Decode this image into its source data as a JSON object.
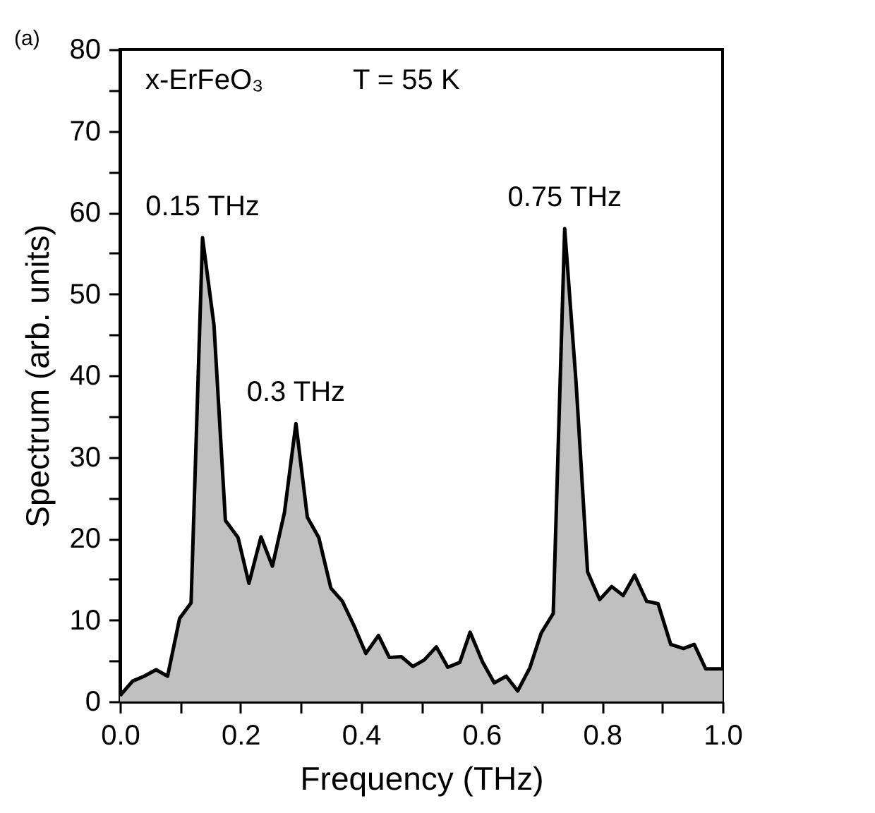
{
  "chart_data": {
    "type": "area",
    "xlabel": "Frequency (THz)",
    "ylabel": "Spectrum (arb. units)",
    "x": [
      0.0,
      0.021,
      0.04,
      0.06,
      0.079,
      0.099,
      0.118,
      0.137,
      0.156,
      0.175,
      0.196,
      0.214,
      0.234,
      0.253,
      0.273,
      0.292,
      0.311,
      0.33,
      0.35,
      0.369,
      0.389,
      0.408,
      0.429,
      0.447,
      0.467,
      0.486,
      0.505,
      0.525,
      0.544,
      0.564,
      0.581,
      0.602,
      0.621,
      0.641,
      0.66,
      0.68,
      0.699,
      0.719,
      0.738,
      0.757,
      0.776,
      0.796,
      0.816,
      0.835,
      0.854,
      0.874,
      0.893,
      0.914,
      0.935,
      0.953,
      0.972,
      0.99,
      1.0
    ],
    "series": [
      {
        "color": "#c0c0c0",
        "values": [
          0.7,
          2.5,
          3.1,
          3.9,
          3.1,
          10.2,
          12.1,
          56.9,
          46.2,
          22.2,
          20.1,
          14.5,
          20.2,
          16.6,
          23.2,
          34.1,
          22.6,
          20.1,
          13.9,
          12.3,
          9.2,
          5.9,
          8.1,
          5.4,
          5.5,
          4.3,
          5.1,
          6.7,
          4.2,
          4.8,
          8.5,
          4.8,
          2.3,
          3.1,
          1.3,
          4.1,
          8.4,
          10.8,
          58,
          39,
          15.9,
          12.5,
          14.1,
          13,
          15.5,
          12.3,
          12,
          7,
          6.5,
          7,
          4,
          4,
          4
        ]
      }
    ],
    "xlim": [
      0.0,
      1.0
    ],
    "ylim": [
      0,
      80
    ],
    "xticks": [
      {
        "value": 0,
        "label": "0.0"
      },
      {
        "value": 0.1,
        "label": null
      },
      0.2,
      {
        "value": 0.3,
        "label": null
      },
      0.4,
      {
        "value": 0.5,
        "label": null
      },
      0.6,
      {
        "value": 0.7,
        "label": null
      },
      0.8,
      {
        "value": 0.9,
        "label": null
      },
      {
        "value": 1,
        "label": "1.0"
      }
    ],
    "yticks": [
      0,
      {
        "value": 5,
        "label": null
      },
      10,
      {
        "value": 15,
        "label": null
      },
      20,
      {
        "value": 25,
        "label": null
      },
      30,
      {
        "value": 35,
        "label": null
      },
      40,
      {
        "value": 45,
        "label": null
      },
      50,
      {
        "value": 55,
        "label": null
      },
      60,
      {
        "value": 65,
        "label": null
      },
      70,
      {
        "value": 75,
        "label": null
      },
      80
    ],
    "annotations": [
      "(a)",
      "x-ErFeO₃",
      "T = 55 K",
      {
        "text": "0.15 THz",
        "x": 0.137,
        "y": 56.9
      },
      {
        "text": "0.3 THz",
        "x": 0.292,
        "y": 34.1
      },
      {
        "text": "0.75 THz",
        "x": 0.738,
        "y": 58
      }
    ],
    "grid": false
  }
}
